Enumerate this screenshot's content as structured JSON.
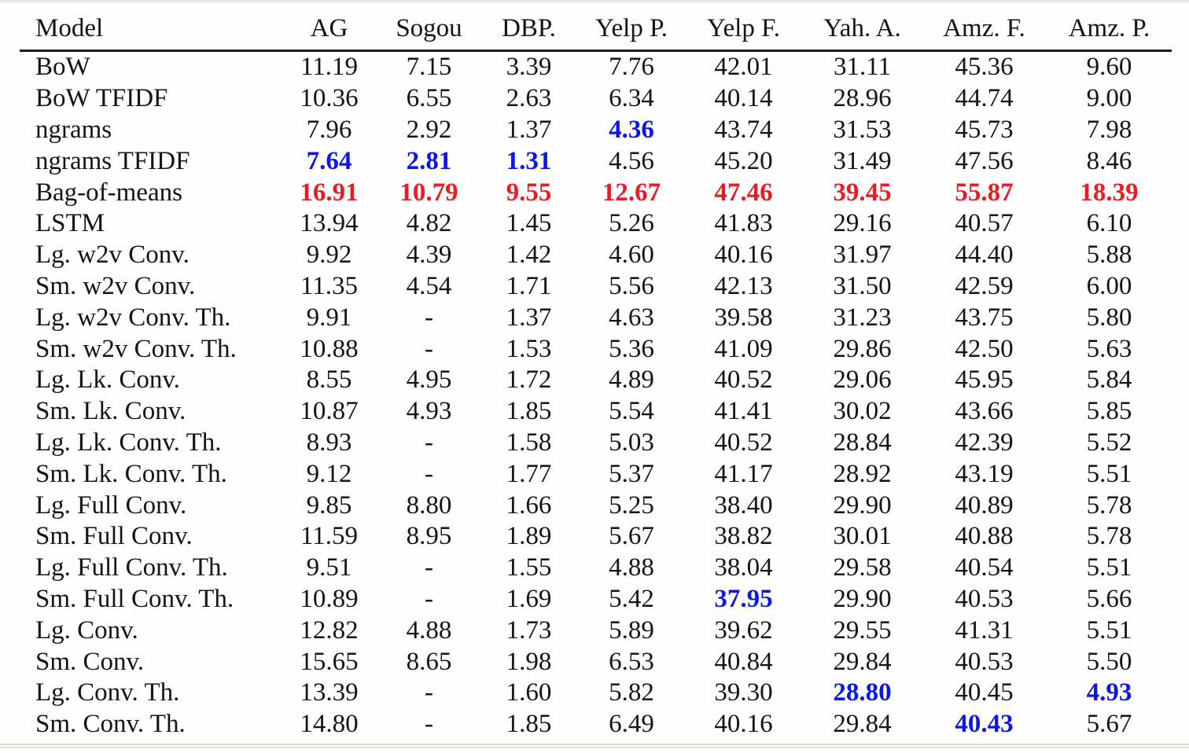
{
  "colors": {
    "best_blue": "#0d16e4",
    "worst_red": "#e71d24",
    "text": "#141414"
  },
  "table": {
    "columns": [
      "Model",
      "AG",
      "Sogou",
      "DBP.",
      "Yelp P.",
      "Yelp F.",
      "Yah. A.",
      "Amz. F.",
      "Amz. P."
    ],
    "legend": {
      "best_style": "blue bold = best result",
      "worst_style": "red bold = worst result"
    },
    "rows": [
      {
        "model": "BoW",
        "values": [
          "11.19",
          "7.15",
          "3.39",
          "7.76",
          "42.01",
          "31.11",
          "45.36",
          "9.60"
        ],
        "styles": [
          "",
          "",
          "",
          "",
          "",
          "",
          "",
          ""
        ]
      },
      {
        "model": "BoW TFIDF",
        "values": [
          "10.36",
          "6.55",
          "2.63",
          "6.34",
          "40.14",
          "28.96",
          "44.74",
          "9.00"
        ],
        "styles": [
          "",
          "",
          "",
          "",
          "",
          "",
          "",
          ""
        ]
      },
      {
        "model": "ngrams",
        "values": [
          "7.96",
          "2.92",
          "1.37",
          "4.36",
          "43.74",
          "31.53",
          "45.73",
          "7.98"
        ],
        "styles": [
          "",
          "",
          "",
          "best",
          "",
          "",
          "",
          ""
        ]
      },
      {
        "model": "ngrams TFIDF",
        "values": [
          "7.64",
          "2.81",
          "1.31",
          "4.56",
          "45.20",
          "31.49",
          "47.56",
          "8.46"
        ],
        "styles": [
          "best",
          "best",
          "best",
          "",
          "",
          "",
          "",
          ""
        ]
      },
      {
        "model": "Bag-of-means",
        "values": [
          "16.91",
          "10.79",
          "9.55",
          "12.67",
          "47.46",
          "39.45",
          "55.87",
          "18.39"
        ],
        "styles": [
          "worst",
          "worst",
          "worst",
          "worst",
          "worst",
          "worst",
          "worst",
          "worst"
        ]
      },
      {
        "model": "LSTM",
        "values": [
          "13.94",
          "4.82",
          "1.45",
          "5.26",
          "41.83",
          "29.16",
          "40.57",
          "6.10"
        ],
        "styles": [
          "",
          "",
          "",
          "",
          "",
          "",
          "",
          ""
        ]
      },
      {
        "model": "Lg. w2v Conv.",
        "values": [
          "9.92",
          "4.39",
          "1.42",
          "4.60",
          "40.16",
          "31.97",
          "44.40",
          "5.88"
        ],
        "styles": [
          "",
          "",
          "",
          "",
          "",
          "",
          "",
          ""
        ]
      },
      {
        "model": "Sm. w2v Conv.",
        "values": [
          "11.35",
          "4.54",
          "1.71",
          "5.56",
          "42.13",
          "31.50",
          "42.59",
          "6.00"
        ],
        "styles": [
          "",
          "",
          "",
          "",
          "",
          "",
          "",
          ""
        ]
      },
      {
        "model": "Lg. w2v Conv. Th.",
        "values": [
          "9.91",
          "-",
          "1.37",
          "4.63",
          "39.58",
          "31.23",
          "43.75",
          "5.80"
        ],
        "styles": [
          "",
          "",
          "",
          "",
          "",
          "",
          "",
          ""
        ]
      },
      {
        "model": "Sm. w2v Conv. Th.",
        "values": [
          "10.88",
          "-",
          "1.53",
          "5.36",
          "41.09",
          "29.86",
          "42.50",
          "5.63"
        ],
        "styles": [
          "",
          "",
          "",
          "",
          "",
          "",
          "",
          ""
        ]
      },
      {
        "model": "Lg. Lk. Conv.",
        "values": [
          "8.55",
          "4.95",
          "1.72",
          "4.89",
          "40.52",
          "29.06",
          "45.95",
          "5.84"
        ],
        "styles": [
          "",
          "",
          "",
          "",
          "",
          "",
          "",
          ""
        ]
      },
      {
        "model": "Sm. Lk. Conv.",
        "values": [
          "10.87",
          "4.93",
          "1.85",
          "5.54",
          "41.41",
          "30.02",
          "43.66",
          "5.85"
        ],
        "styles": [
          "",
          "",
          "",
          "",
          "",
          "",
          "",
          ""
        ]
      },
      {
        "model": "Lg. Lk. Conv. Th.",
        "values": [
          "8.93",
          "-",
          "1.58",
          "5.03",
          "40.52",
          "28.84",
          "42.39",
          "5.52"
        ],
        "styles": [
          "",
          "",
          "",
          "",
          "",
          "",
          "",
          ""
        ]
      },
      {
        "model": "Sm. Lk. Conv. Th.",
        "values": [
          "9.12",
          "-",
          "1.77",
          "5.37",
          "41.17",
          "28.92",
          "43.19",
          "5.51"
        ],
        "styles": [
          "",
          "",
          "",
          "",
          "",
          "",
          "",
          ""
        ]
      },
      {
        "model": "Lg. Full Conv.",
        "values": [
          "9.85",
          "8.80",
          "1.66",
          "5.25",
          "38.40",
          "29.90",
          "40.89",
          "5.78"
        ],
        "styles": [
          "",
          "",
          "",
          "",
          "",
          "",
          "",
          ""
        ]
      },
      {
        "model": "Sm. Full Conv.",
        "values": [
          "11.59",
          "8.95",
          "1.89",
          "5.67",
          "38.82",
          "30.01",
          "40.88",
          "5.78"
        ],
        "styles": [
          "",
          "",
          "",
          "",
          "",
          "",
          "",
          ""
        ]
      },
      {
        "model": "Lg. Full Conv. Th.",
        "values": [
          "9.51",
          "-",
          "1.55",
          "4.88",
          "38.04",
          "29.58",
          "40.54",
          "5.51"
        ],
        "styles": [
          "",
          "",
          "",
          "",
          "",
          "",
          "",
          ""
        ]
      },
      {
        "model": "Sm. Full Conv. Th.",
        "values": [
          "10.89",
          "-",
          "1.69",
          "5.42",
          "37.95",
          "29.90",
          "40.53",
          "5.66"
        ],
        "styles": [
          "",
          "",
          "",
          "",
          "best",
          "",
          "",
          ""
        ]
      },
      {
        "model": "Lg. Conv.",
        "values": [
          "12.82",
          "4.88",
          "1.73",
          "5.89",
          "39.62",
          "29.55",
          "41.31",
          "5.51"
        ],
        "styles": [
          "",
          "",
          "",
          "",
          "",
          "",
          "",
          ""
        ]
      },
      {
        "model": "Sm. Conv.",
        "values": [
          "15.65",
          "8.65",
          "1.98",
          "6.53",
          "40.84",
          "29.84",
          "40.53",
          "5.50"
        ],
        "styles": [
          "",
          "",
          "",
          "",
          "",
          "",
          "",
          ""
        ]
      },
      {
        "model": "Lg. Conv. Th.",
        "values": [
          "13.39",
          "-",
          "1.60",
          "5.82",
          "39.30",
          "28.80",
          "40.45",
          "4.93"
        ],
        "styles": [
          "",
          "",
          "",
          "",
          "",
          "best",
          "",
          "best"
        ]
      },
      {
        "model": "Sm. Conv. Th.",
        "values": [
          "14.80",
          "-",
          "1.85",
          "6.49",
          "40.16",
          "29.84",
          "40.43",
          "5.67"
        ],
        "styles": [
          "",
          "",
          "",
          "",
          "",
          "",
          "best",
          ""
        ]
      }
    ]
  }
}
